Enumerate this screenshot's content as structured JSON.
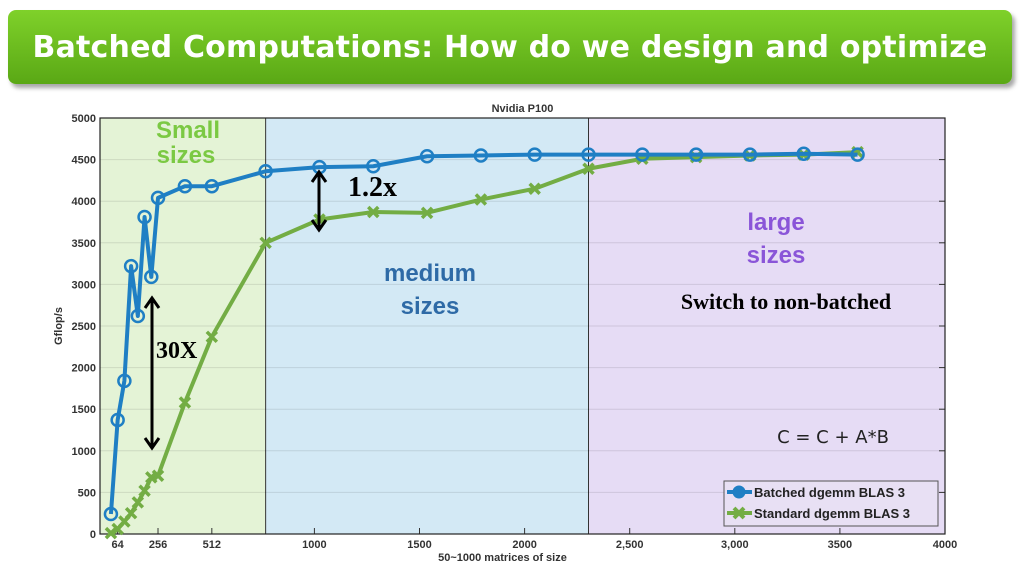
{
  "slide_title": "Batched Computations: How do we design and optimize",
  "chart_data": {
    "type": "line",
    "title": "Nvidia P100",
    "xlabel": "50~1000 matrices of size",
    "ylabel": "Gflop/s",
    "xlim": [
      -20,
      4000
    ],
    "ylim": [
      0,
      5000
    ],
    "grid": true,
    "yticks": [
      0,
      500,
      1000,
      1500,
      2000,
      2500,
      3000,
      3500,
      4000,
      4500,
      5000
    ],
    "xticks": [
      {
        "value": 64,
        "label": "64"
      },
      {
        "value": 256,
        "label": "256"
      },
      {
        "value": 512,
        "label": "512"
      },
      {
        "value": 1000,
        "label": "1000"
      },
      {
        "value": 1500,
        "label": "1500"
      },
      {
        "value": 2000,
        "label": "2000"
      },
      {
        "value": 2500,
        "label": "2,500"
      },
      {
        "value": 3000,
        "label": "3,000"
      },
      {
        "value": 3500,
        "label": "3500"
      },
      {
        "value": 4000,
        "label": "4000"
      }
    ],
    "x": [
      32,
      64,
      96,
      128,
      160,
      192,
      224,
      256,
      384,
      512,
      768,
      1024,
      1280,
      1536,
      1792,
      2048,
      2304,
      2560,
      2816,
      3072,
      3328,
      3584
    ],
    "series": [
      {
        "name": "Batched  dgemm BLAS 3",
        "color": "#1f7fc4",
        "marker": "circle",
        "values": [
          240,
          1370,
          1840,
          3220,
          2620,
          3810,
          3090,
          4040,
          4180,
          4180,
          4360,
          4410,
          4420,
          4540,
          4550,
          4560,
          4560,
          4560,
          4560,
          4560,
          4570,
          4560
        ]
      },
      {
        "name": "Standard dgemm BLAS 3",
        "color": "#73ad44",
        "marker": "x",
        "values": [
          10,
          60,
          150,
          250,
          380,
          520,
          680,
          700,
          1580,
          2370,
          3500,
          3780,
          3870,
          3860,
          4020,
          4150,
          4390,
          4510,
          4530,
          4550,
          4560,
          4590
        ]
      }
    ],
    "regions": [
      {
        "label": "Small sizes",
        "from": -20,
        "to": 768,
        "fill": "#e4f3d6",
        "text_color": "#7bc943"
      },
      {
        "label": "medium sizes",
        "from": 768,
        "to": 2304,
        "fill": "#d3e9f5",
        "text_color": "#2e6aa6"
      },
      {
        "label": "large sizes",
        "from": 2304,
        "to": 4000,
        "fill": "#e6dcf5",
        "text_color": "#8a55d8"
      }
    ],
    "annotations": {
      "speedup_small": "30X",
      "speedup_medium": "1.2x",
      "switch_note": "Switch to non-batched",
      "formula": "C = C + A*B"
    },
    "legend_position": "bottom-right"
  }
}
